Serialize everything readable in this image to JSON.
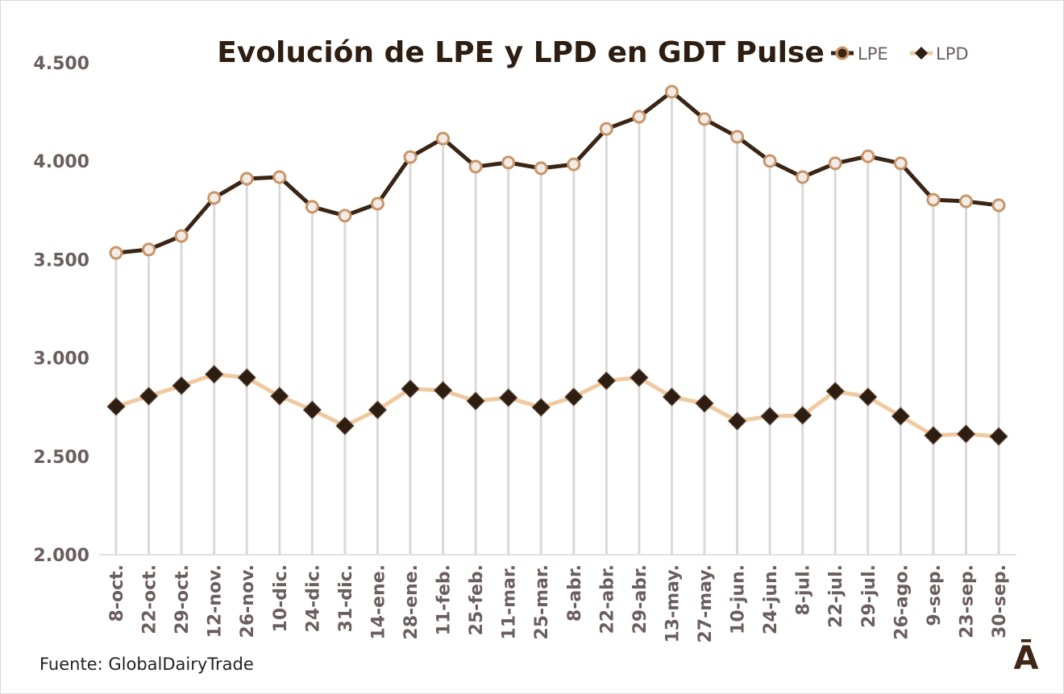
{
  "chart_data": {
    "type": "line",
    "title": "Evolución de LPE y LPD en GDT Pulse",
    "xlabel": "",
    "ylabel": "",
    "ylim": [
      2000,
      4500
    ],
    "yticks": [
      "2.000",
      "2.500",
      "3.000",
      "3.500",
      "4.000",
      "4.500"
    ],
    "ytick_values": [
      2000,
      2500,
      3000,
      3500,
      4000,
      4500
    ],
    "grid": false,
    "legend_position": "top-right",
    "categories": [
      "8-oct.",
      "22-oct.",
      "29-oct.",
      "12-nov.",
      "26-nov.",
      "10-dic.",
      "24-dic.",
      "31-dic.",
      "14-ene.",
      "28-ene.",
      "11-feb.",
      "25-feb.",
      "11-mar.",
      "25-mar.",
      "8-abr.",
      "22-abr.",
      "29-abr.",
      "13-may.",
      "27-may.",
      "10-jun.",
      "24-jun.",
      "8-jul.",
      "22-jul.",
      "29-jul.",
      "26-ago.",
      "9-sep.",
      "23-sep.",
      "30-sep."
    ],
    "series": [
      {
        "name": "LPE",
        "color": "#3a2515",
        "marker_color": "#c8956a",
        "values": [
          3534,
          3551,
          3620,
          3813,
          3911,
          3919,
          3768,
          3723,
          3784,
          4021,
          4115,
          3972,
          3993,
          3964,
          3984,
          4164,
          4226,
          4353,
          4214,
          4124,
          4001,
          3919,
          3989,
          4025,
          3989,
          3804,
          3796,
          3776
        ]
      },
      {
        "name": "LPD",
        "color": "#f0c9a0",
        "marker_color": "#2e1e12",
        "values": [
          2753,
          2806,
          2859,
          2917,
          2900,
          2806,
          2736,
          2655,
          2736,
          2843,
          2835,
          2781,
          2798,
          2749,
          2802,
          2884,
          2900,
          2802,
          2769,
          2679,
          2704,
          2708,
          2831,
          2802,
          2704,
          2606,
          2614,
          2601
        ]
      }
    ]
  },
  "source": "Fuente: GlobalDairyTrade",
  "logo": "Ā"
}
